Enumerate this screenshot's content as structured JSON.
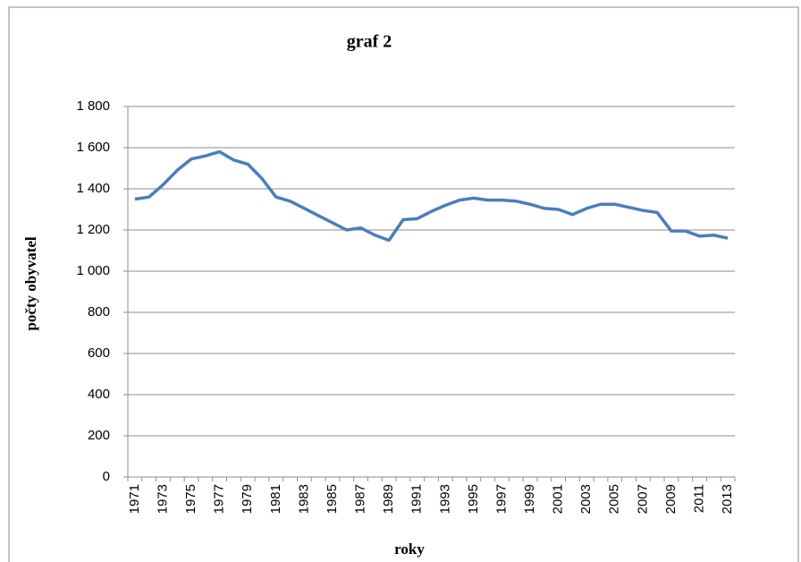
{
  "chart_data": {
    "type": "line",
    "title": "graf 2",
    "x_label": "roky",
    "y_label": "počty obyvatel",
    "categories": [
      "1971",
      null,
      "1973",
      null,
      "1975",
      null,
      "1977",
      null,
      "1979",
      null,
      "1981",
      null,
      "1983",
      null,
      "1985",
      null,
      "1987",
      null,
      "1989",
      null,
      "1991",
      null,
      "1993",
      null,
      "1995",
      null,
      "1997",
      null,
      "1999",
      null,
      "2001",
      null,
      "2003",
      null,
      "2005",
      null,
      "2007",
      null,
      "2009",
      null,
      "2011",
      null,
      "2013"
    ],
    "series": [
      {
        "color": "#4a7ebb",
        "values": [
          1350,
          1360,
          1420,
          1490,
          1545,
          1560,
          1580,
          1540,
          1520,
          1450,
          1360,
          1340,
          1305,
          1270,
          1235,
          1200,
          1210,
          1175,
          1150,
          1250,
          1255,
          1290,
          1320,
          1345,
          1355,
          1345,
          1345,
          1340,
          1325,
          1305,
          1300,
          1275,
          1305,
          1325,
          1325,
          1310,
          1295,
          1285,
          1195,
          1195,
          1170,
          1175,
          1160
        ]
      }
    ],
    "ylim": [
      0,
      1800
    ],
    "yticks": [
      0,
      200,
      400,
      600,
      800,
      {
        "value": 1000,
        "label": "1 000"
      },
      {
        "value": 1200,
        "label": "1 200"
      },
      {
        "value": 1400,
        "label": "1 400"
      },
      {
        "value": 1600,
        "label": "1 600"
      },
      {
        "value": 1800,
        "label": "1 800"
      }
    ],
    "grid": true
  }
}
